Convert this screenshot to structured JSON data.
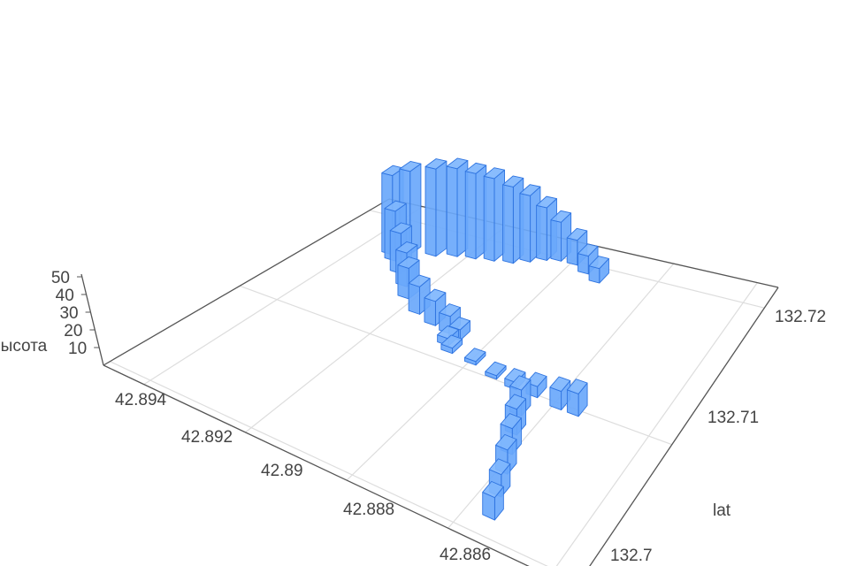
{
  "chart_data": {
    "type": "3d-bar",
    "title": "",
    "x_axis": {
      "label": "",
      "range": [
        42.8855,
        42.8948
      ],
      "ticks": [
        "42.894",
        "42.892",
        "42.89",
        "42.888",
        "42.886"
      ],
      "tick_values": [
        42.894,
        42.892,
        42.89,
        42.888,
        42.886
      ]
    },
    "y_axis": {
      "label": "lat",
      "range": [
        132.6995,
        132.7215
      ],
      "ticks": [
        "132.72",
        "132.71",
        "132.7"
      ],
      "tick_values": [
        132.72,
        132.71,
        132.7
      ]
    },
    "z_axis": {
      "label": "Высота",
      "range": [
        0,
        55
      ],
      "ticks": [
        "10",
        "20",
        "30",
        "40",
        "50"
      ],
      "tick_values": [
        10,
        20,
        30,
        40,
        50
      ]
    },
    "grid": true,
    "colors": {
      "bar_fill": "#6aa8fb",
      "bar_edge": "#2f74e0",
      "grid": "#dddddd",
      "axis": "#555555"
    },
    "bars": [
      {
        "x": 42.88922,
        "y": 132.7193,
        "z": 8
      },
      {
        "x": 42.88959,
        "y": 132.71974,
        "z": 10
      },
      {
        "x": 42.88996,
        "y": 132.72018,
        "z": 14
      },
      {
        "x": 42.89034,
        "y": 132.72018,
        "z": 22
      },
      {
        "x": 42.89062,
        "y": 132.71996,
        "z": 30
      },
      {
        "x": 42.89089,
        "y": 132.71952,
        "z": 38
      },
      {
        "x": 42.89117,
        "y": 132.71908,
        "z": 44
      },
      {
        "x": 42.89155,
        "y": 132.71886,
        "z": 48
      },
      {
        "x": 42.89192,
        "y": 132.71864,
        "z": 50
      },
      {
        "x": 42.89229,
        "y": 132.71842,
        "z": 52
      },
      {
        "x": 42.89266,
        "y": 132.71798,
        "z": 52
      },
      {
        "x": 42.89313,
        "y": 132.71754,
        "z": 50
      },
      {
        "x": 42.89341,
        "y": 132.7171,
        "z": 48
      },
      {
        "x": 42.89322,
        "y": 132.71666,
        "z": 30
      },
      {
        "x": 42.89285,
        "y": 132.71578,
        "z": 24
      },
      {
        "x": 42.89248,
        "y": 132.7149,
        "z": 20
      },
      {
        "x": 42.8922,
        "y": 132.71402,
        "z": 18
      },
      {
        "x": 42.89173,
        "y": 132.71314,
        "z": 16
      },
      {
        "x": 42.89127,
        "y": 132.7127,
        "z": 14
      },
      {
        "x": 42.89089,
        "y": 132.71248,
        "z": 10
      },
      {
        "x": 42.89062,
        "y": 132.71226,
        "z": 6
      },
      {
        "x": 42.89071,
        "y": 132.7116,
        "z": 4
      },
      {
        "x": 42.89052,
        "y": 132.71116,
        "z": 3
      },
      {
        "x": 42.88996,
        "y": 132.71094,
        "z": 2
      },
      {
        "x": 42.88941,
        "y": 132.7105,
        "z": 2
      },
      {
        "x": 42.88894,
        "y": 132.71028,
        "z": 4
      },
      {
        "x": 42.88848,
        "y": 132.71028,
        "z": 6
      },
      {
        "x": 42.88792,
        "y": 132.71006,
        "z": 10
      },
      {
        "x": 42.88755,
        "y": 132.71006,
        "z": 12
      },
      {
        "x": 42.88848,
        "y": 132.70874,
        "z": 14
      },
      {
        "x": 42.88829,
        "y": 132.70742,
        "z": 14
      },
      {
        "x": 42.8881,
        "y": 132.7061,
        "z": 14
      },
      {
        "x": 42.88792,
        "y": 132.70478,
        "z": 13
      },
      {
        "x": 42.88773,
        "y": 132.70324,
        "z": 12
      },
      {
        "x": 42.88755,
        "y": 132.7017,
        "z": 12
      }
    ]
  }
}
